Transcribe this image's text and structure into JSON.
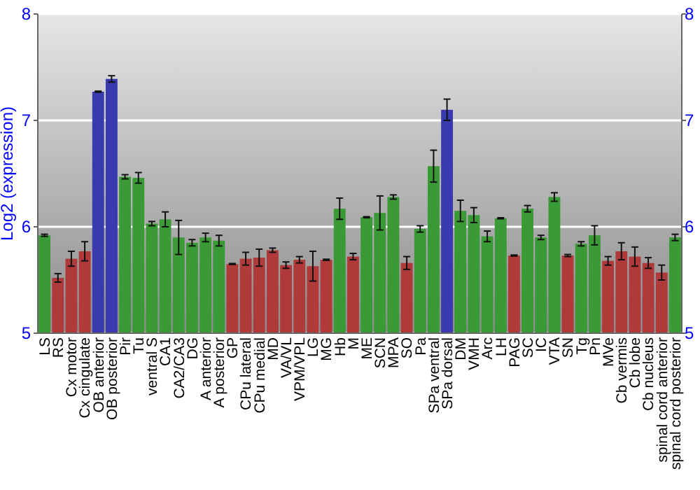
{
  "chart_data": {
    "type": "bar",
    "ylabel": "Log2 (expression)",
    "categories": [
      "LS",
      "RS",
      "Cx motor",
      "Cx cingulate",
      "OB anterior",
      "OB posterior",
      "Pir",
      "Tu",
      "ventral S",
      "CA1",
      "CA2/CA3",
      "DG",
      "A anterior",
      "A posterior",
      "GP",
      "CPu lateral",
      "CPu medial",
      "MD",
      "VA/VL",
      "VPM/VPL",
      "LG",
      "MG",
      "Hb",
      "M",
      "ME",
      "SCN",
      "MPA",
      "SO",
      "Pa",
      "SPa ventral",
      "SPa dorsal",
      "DM",
      "VMH",
      "Arc",
      "LH",
      "PAG",
      "SC",
      "IC",
      "VTA",
      "SN",
      "Tg",
      "Pn",
      "MVe",
      "Cb vermis",
      "Cb lobe",
      "Cb nucleus",
      "spinal cord anterior",
      "spinal cord posterior"
    ],
    "values": [
      5.92,
      5.52,
      5.7,
      5.77,
      7.27,
      7.39,
      6.47,
      6.46,
      6.03,
      6.07,
      5.9,
      5.85,
      5.9,
      5.87,
      5.65,
      5.7,
      5.71,
      5.78,
      5.64,
      5.69,
      5.63,
      5.69,
      6.17,
      5.72,
      6.09,
      6.13,
      6.28,
      5.66,
      5.98,
      6.57,
      7.1,
      6.15,
      6.11,
      5.91,
      6.08,
      5.73,
      6.17,
      5.9,
      6.28,
      5.73,
      5.84,
      5.92,
      5.68,
      5.77,
      5.72,
      5.66,
      5.57,
      5.9
    ],
    "errors": [
      0.01,
      0.04,
      0.07,
      0.09,
      0.005,
      0.03,
      0.02,
      0.05,
      0.02,
      0.07,
      0.16,
      0.03,
      0.04,
      0.05,
      0.005,
      0.06,
      0.08,
      0.02,
      0.03,
      0.03,
      0.14,
      0.005,
      0.1,
      0.03,
      0.005,
      0.16,
      0.02,
      0.06,
      0.03,
      0.15,
      0.1,
      0.1,
      0.07,
      0.05,
      0.005,
      0.005,
      0.03,
      0.02,
      0.04,
      0.01,
      0.02,
      0.09,
      0.04,
      0.08,
      0.09,
      0.05,
      0.07,
      0.03
    ],
    "colors": [
      "#3a9a35",
      "#b03a3a",
      "#b03a3a",
      "#b03a3a",
      "#3a3ab0",
      "#3a3ab0",
      "#3a9a35",
      "#3a9a35",
      "#3a9a35",
      "#3a9a35",
      "#3a9a35",
      "#3a9a35",
      "#3a9a35",
      "#3a9a35",
      "#b03a3a",
      "#b03a3a",
      "#b03a3a",
      "#b03a3a",
      "#b03a3a",
      "#b03a3a",
      "#b03a3a",
      "#b03a3a",
      "#3a9a35",
      "#b03a3a",
      "#3a9a35",
      "#3a9a35",
      "#3a9a35",
      "#b03a3a",
      "#3a9a35",
      "#3a9a35",
      "#3a3ab0",
      "#3a9a35",
      "#3a9a35",
      "#3a9a35",
      "#3a9a35",
      "#b03a3a",
      "#3a9a35",
      "#3a9a35",
      "#3a9a35",
      "#b03a3a",
      "#3a9a35",
      "#3a9a35",
      "#b03a3a",
      "#b03a3a",
      "#b03a3a",
      "#b03a3a",
      "#b03a3a",
      "#3a9a35"
    ],
    "ylim": [
      5,
      8
    ],
    "yticks": [
      5,
      6,
      7,
      8
    ],
    "y2lim": [
      5,
      8
    ],
    "y2ticks": [
      5,
      6,
      7,
      8
    ],
    "grid": "y"
  }
}
